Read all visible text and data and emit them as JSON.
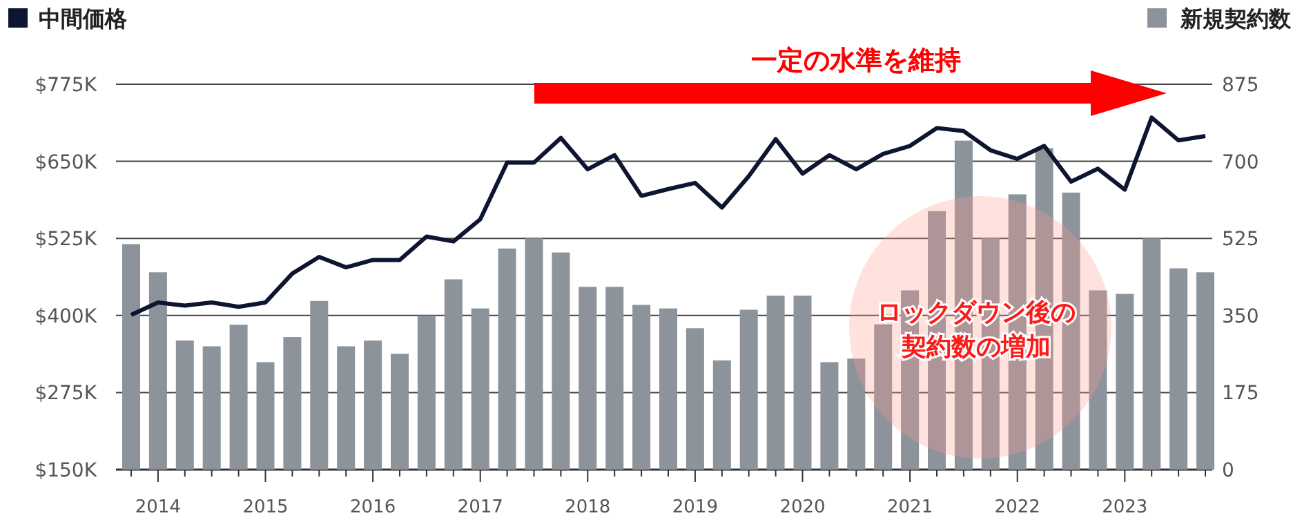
{
  "chart_data": {
    "type": "bar",
    "categories": [
      null,
      "2014",
      null,
      null,
      null,
      "2015",
      null,
      null,
      null,
      "2016",
      null,
      null,
      null,
      "2017",
      null,
      null,
      null,
      "2018",
      null,
      null,
      null,
      "2019",
      null,
      null,
      null,
      "2020",
      null,
      null,
      null,
      "2021",
      null,
      null,
      null,
      "2022",
      null,
      null,
      null,
      "2023",
      null,
      null,
      null
    ],
    "series": [
      {
        "name": "新規契約数",
        "axis": "y2",
        "color": "#8c939b",
        "values": [
          512,
          448,
          293,
          280,
          329,
          244,
          301,
          383,
          280,
          293,
          263,
          350,
          432,
          366,
          502,
          525,
          493,
          415,
          415,
          374,
          366,
          321,
          248,
          363,
          395,
          395,
          244,
          252,
          330,
          407,
          587,
          747,
          525,
          625,
          730,
          629,
          407,
          399,
          525,
          457,
          448
        ]
      },
      {
        "name": "中間価格",
        "type": "line",
        "axis": "y",
        "color": "#0d1530",
        "values": [
          401,
          421,
          416,
          421,
          414,
          421,
          468,
          495,
          478,
          490,
          490,
          528,
          520,
          556,
          648,
          648,
          688,
          637,
          660,
          594,
          605,
          615,
          575,
          626,
          686,
          630,
          660,
          637,
          662,
          675,
          704,
          699,
          668,
          654,
          675,
          617,
          638,
          604,
          721,
          684,
          691
        ]
      }
    ],
    "ylim": [
      150,
      775
    ],
    "yticks": [
      {
        "value": 150,
        "label": "$150K"
      },
      {
        "value": 275,
        "label": "$275K"
      },
      {
        "value": 400,
        "label": "$400K"
      },
      {
        "value": 525,
        "label": "$525K"
      },
      {
        "value": 650,
        "label": "$650K"
      },
      {
        "value": 775,
        "label": "$775K"
      }
    ],
    "y2lim": [
      0,
      875
    ],
    "y2ticks": [
      0,
      175,
      350,
      525,
      700,
      875
    ],
    "grid": "y",
    "legend": "top",
    "annotations": [
      "一定の水準を維持",
      "ロックダウン後の",
      "契約数の増加"
    ]
  }
}
